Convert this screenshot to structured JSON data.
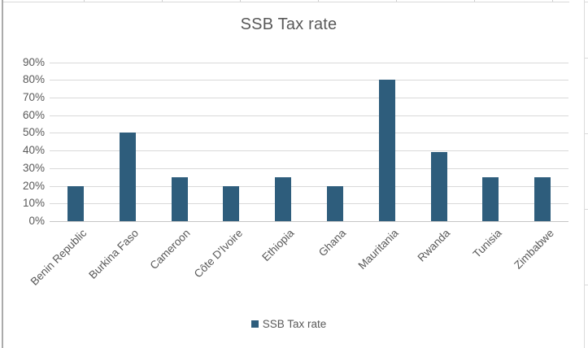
{
  "chart_data": {
    "type": "bar",
    "title": "SSB Tax rate",
    "categories": [
      "Benin Republic",
      "Burkina Faso",
      "Cameroon",
      "Côte D'Ivoire",
      "Ethiopia",
      "Ghana",
      "Mauritania",
      "Rwanda",
      "Tunisia",
      "Zimbabwe"
    ],
    "series": [
      {
        "name": "SSB Tax rate",
        "values": [
          20,
          50,
          25,
          20,
          25,
          20,
          80,
          39,
          25,
          25
        ]
      }
    ],
    "xlabel": "",
    "ylabel": "",
    "ylim": [
      0,
      90
    ],
    "y_tick_step": 10,
    "y_tick_labels": [
      "0%",
      "10%",
      "20%",
      "30%",
      "40%",
      "50%",
      "60%",
      "70%",
      "80%",
      "90%"
    ],
    "grid": true,
    "legend_position": "bottom",
    "colors": {
      "bar": "#2E5D7C",
      "gridline": "#D9D9D9",
      "axis_line": "#C6C6C6",
      "text": "#595959",
      "title_text": "#595959"
    }
  },
  "legend": {
    "label": "SSB Tax rate",
    "swatch_color": "#2E5D7C"
  }
}
